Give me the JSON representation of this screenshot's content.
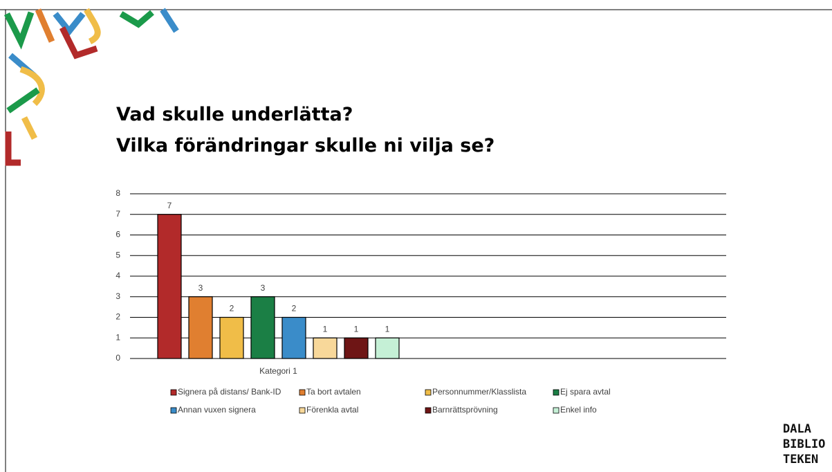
{
  "slide": {
    "title_lines": [
      "Vad skulle underlätta?",
      "Vilka förändringar skulle ni vilja se?"
    ],
    "logo_lines": [
      "DALA",
      "BIBLIO",
      "TEKEN"
    ]
  },
  "chart_data": {
    "type": "bar",
    "categories": [
      "Kategori 1"
    ],
    "series": [
      {
        "name": "Signera på distans/ Bank-ID",
        "color": "#b22a2a",
        "values": [
          7
        ]
      },
      {
        "name": "Ta bort avtalen",
        "color": "#e07f30",
        "values": [
          3
        ]
      },
      {
        "name": "Personnummer/Klasslista",
        "color": "#f0bd48",
        "values": [
          2
        ]
      },
      {
        "name": "Ej spara avtal",
        "color": "#1b7f45",
        "values": [
          3
        ]
      },
      {
        "name": "Annan vuxen signera",
        "color": "#3a8cc9",
        "values": [
          2
        ]
      },
      {
        "name": "Förenkla avtal",
        "color": "#f8d89a",
        "values": [
          1
        ]
      },
      {
        "name": "Barnrättsprövning",
        "color": "#6e1515",
        "values": [
          1
        ]
      },
      {
        "name": "Enkel info",
        "color": "#c5f0d6",
        "values": [
          1
        ]
      }
    ],
    "ylim": [
      0,
      8
    ],
    "yticks": [
      0,
      1,
      2,
      3,
      4,
      5,
      6,
      7,
      8
    ],
    "grid": true,
    "legend": "bottom"
  }
}
